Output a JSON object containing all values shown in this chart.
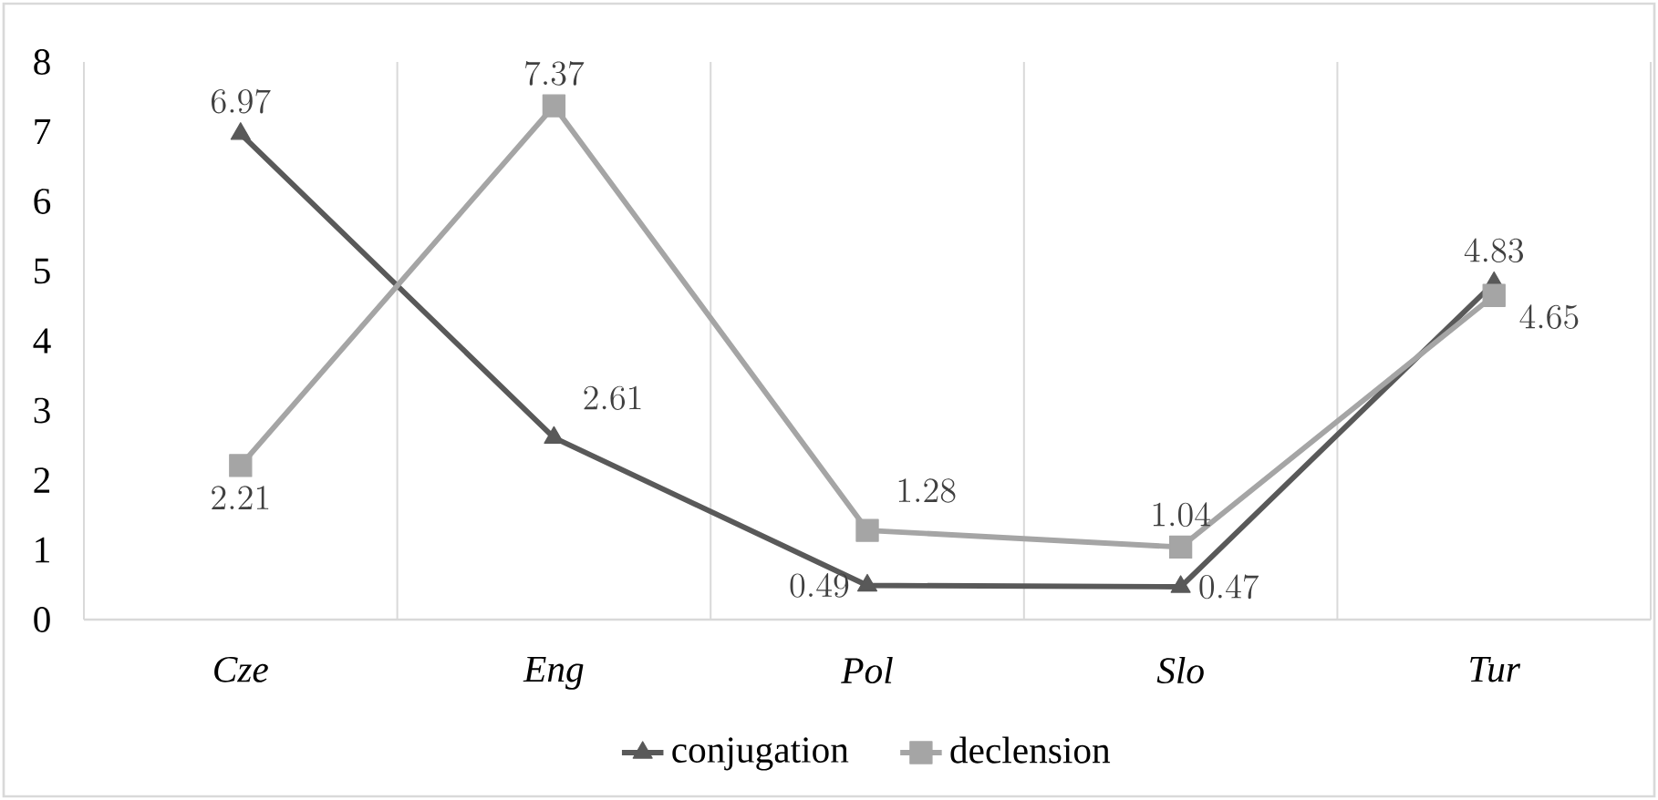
{
  "chart_data": {
    "type": "line",
    "categories": [
      "Cze",
      "Eng",
      "Pol",
      "Slo",
      "Tur"
    ],
    "series": [
      {
        "name": "conjugation",
        "color": "#595959",
        "marker": "triangle",
        "values": [
          6.97,
          2.61,
          0.49,
          0.47,
          4.83
        ]
      },
      {
        "name": "declension",
        "color": "#a5a5a5",
        "marker": "square",
        "values": [
          2.21,
          7.37,
          1.28,
          1.04,
          4.65
        ]
      }
    ],
    "ylim": [
      0,
      8
    ],
    "yticks": [
      0,
      1,
      2,
      3,
      4,
      5,
      6,
      7,
      8
    ],
    "grid": "x",
    "legend": "bottom",
    "data_labels": true
  }
}
